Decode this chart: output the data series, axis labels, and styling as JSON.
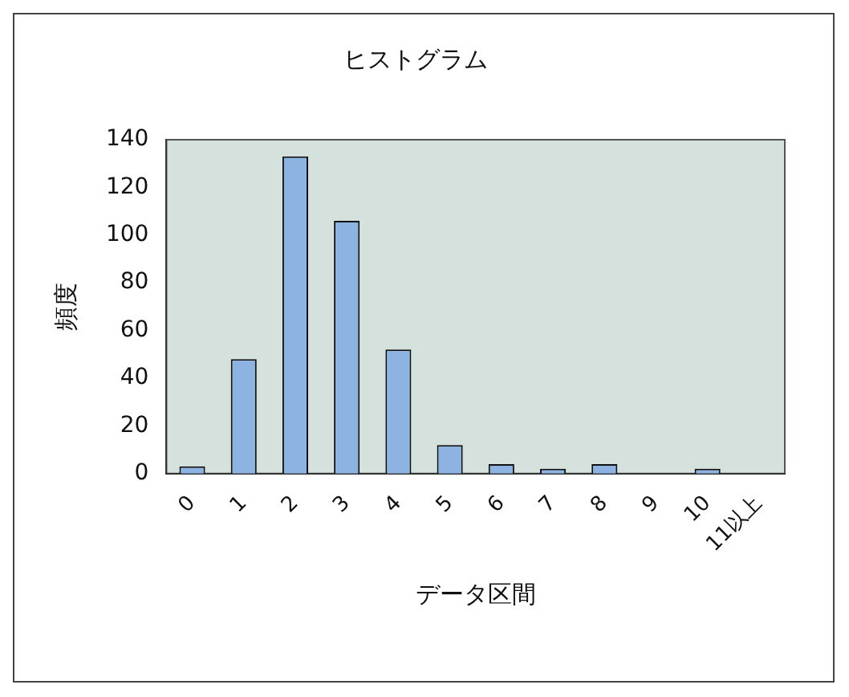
{
  "chart_data": {
    "type": "bar",
    "title": "ヒストグラム",
    "xlabel": "データ区間",
    "ylabel": "頻度",
    "categories": [
      "0",
      "1",
      "2",
      "3",
      "4",
      "5",
      "6",
      "7",
      "8",
      "9",
      "10",
      "11以上"
    ],
    "values": [
      3,
      48,
      133,
      106,
      52,
      12,
      4,
      2,
      4,
      0,
      2,
      0
    ],
    "color": "#8db3e2",
    "ylim": [
      0,
      140
    ],
    "yticks": [
      0,
      20,
      40,
      60,
      80,
      100,
      120,
      140
    ],
    "grid": false,
    "legend": false
  }
}
